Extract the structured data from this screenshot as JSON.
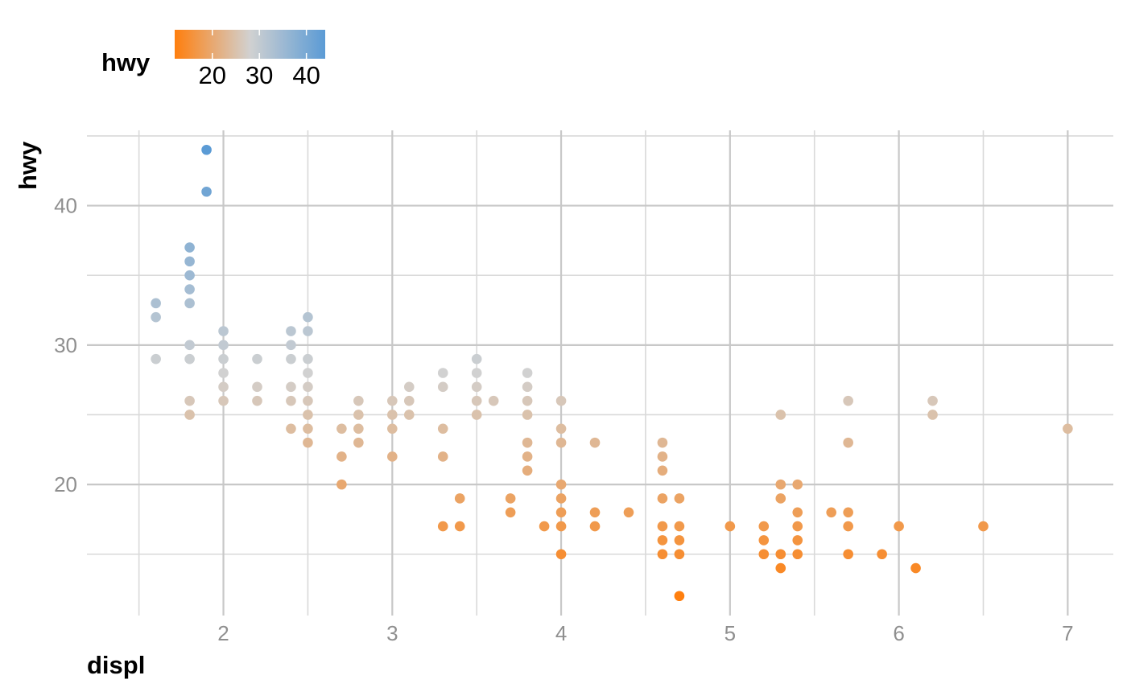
{
  "chart_data": {
    "type": "scatter",
    "title": "",
    "xlabel": "displ",
    "ylabel": "hwy",
    "xlim": [
      1.33,
      7.27
    ],
    "ylim": [
      10.6,
      45.4
    ],
    "x_ticks": [
      2,
      3,
      4,
      5,
      6,
      7
    ],
    "x_minor_ticks": [
      1.5,
      2.5,
      3.5,
      4.5,
      5.5,
      6.5
    ],
    "y_ticks": [
      20,
      30,
      40
    ],
    "y_minor_ticks": [
      15,
      25,
      35,
      45
    ],
    "grid": true,
    "color_scale": {
      "variable": "hwy",
      "title": "hwy",
      "low": 12,
      "high": 44,
      "mid": 28,
      "low_color": "#ff7f0e",
      "mid_color": "#d1d1d1",
      "high_color": "#5b9bd5",
      "tick_values": [
        20,
        30,
        40
      ],
      "tick_labels": [
        "20",
        "30",
        "40"
      ]
    },
    "legend_position": "top-left",
    "points": [
      {
        "x": 1.6,
        "y": 33
      },
      {
        "x": 1.6,
        "y": 32
      },
      {
        "x": 1.6,
        "y": 29
      },
      {
        "x": 1.8,
        "y": 37
      },
      {
        "x": 1.8,
        "y": 36
      },
      {
        "x": 1.8,
        "y": 35
      },
      {
        "x": 1.8,
        "y": 34
      },
      {
        "x": 1.8,
        "y": 33
      },
      {
        "x": 1.8,
        "y": 30
      },
      {
        "x": 1.8,
        "y": 29
      },
      {
        "x": 1.8,
        "y": 26
      },
      {
        "x": 1.8,
        "y": 25
      },
      {
        "x": 1.9,
        "y": 44
      },
      {
        "x": 1.9,
        "y": 41
      },
      {
        "x": 2.0,
        "y": 31
      },
      {
        "x": 2.0,
        "y": 30
      },
      {
        "x": 2.0,
        "y": 29
      },
      {
        "x": 2.0,
        "y": 28
      },
      {
        "x": 2.0,
        "y": 27
      },
      {
        "x": 2.0,
        "y": 26
      },
      {
        "x": 2.2,
        "y": 29
      },
      {
        "x": 2.2,
        "y": 27
      },
      {
        "x": 2.2,
        "y": 26
      },
      {
        "x": 2.4,
        "y": 31
      },
      {
        "x": 2.4,
        "y": 30
      },
      {
        "x": 2.4,
        "y": 29
      },
      {
        "x": 2.4,
        "y": 27
      },
      {
        "x": 2.4,
        "y": 26
      },
      {
        "x": 2.4,
        "y": 24
      },
      {
        "x": 2.5,
        "y": 32
      },
      {
        "x": 2.5,
        "y": 31
      },
      {
        "x": 2.5,
        "y": 29
      },
      {
        "x": 2.5,
        "y": 28
      },
      {
        "x": 2.5,
        "y": 27
      },
      {
        "x": 2.5,
        "y": 26
      },
      {
        "x": 2.5,
        "y": 25
      },
      {
        "x": 2.5,
        "y": 24
      },
      {
        "x": 2.5,
        "y": 23
      },
      {
        "x": 2.7,
        "y": 24
      },
      {
        "x": 2.7,
        "y": 22
      },
      {
        "x": 2.7,
        "y": 20
      },
      {
        "x": 2.8,
        "y": 26
      },
      {
        "x": 2.8,
        "y": 25
      },
      {
        "x": 2.8,
        "y": 24
      },
      {
        "x": 2.8,
        "y": 23
      },
      {
        "x": 3.0,
        "y": 26
      },
      {
        "x": 3.0,
        "y": 25
      },
      {
        "x": 3.0,
        "y": 24
      },
      {
        "x": 3.0,
        "y": 22
      },
      {
        "x": 3.1,
        "y": 27
      },
      {
        "x": 3.1,
        "y": 26
      },
      {
        "x": 3.1,
        "y": 25
      },
      {
        "x": 3.3,
        "y": 28
      },
      {
        "x": 3.3,
        "y": 27
      },
      {
        "x": 3.3,
        "y": 24
      },
      {
        "x": 3.3,
        "y": 22
      },
      {
        "x": 3.3,
        "y": 17
      },
      {
        "x": 3.4,
        "y": 19
      },
      {
        "x": 3.4,
        "y": 17
      },
      {
        "x": 3.5,
        "y": 29
      },
      {
        "x": 3.5,
        "y": 28
      },
      {
        "x": 3.5,
        "y": 27
      },
      {
        "x": 3.5,
        "y": 26
      },
      {
        "x": 3.5,
        "y": 25
      },
      {
        "x": 3.6,
        "y": 26
      },
      {
        "x": 3.7,
        "y": 19
      },
      {
        "x": 3.7,
        "y": 18
      },
      {
        "x": 3.8,
        "y": 28
      },
      {
        "x": 3.8,
        "y": 27
      },
      {
        "x": 3.8,
        "y": 26
      },
      {
        "x": 3.8,
        "y": 25
      },
      {
        "x": 3.8,
        "y": 23
      },
      {
        "x": 3.8,
        "y": 22
      },
      {
        "x": 3.8,
        "y": 21
      },
      {
        "x": 3.9,
        "y": 17
      },
      {
        "x": 4.0,
        "y": 26
      },
      {
        "x": 4.0,
        "y": 24
      },
      {
        "x": 4.0,
        "y": 23
      },
      {
        "x": 4.0,
        "y": 20
      },
      {
        "x": 4.0,
        "y": 19
      },
      {
        "x": 4.0,
        "y": 18
      },
      {
        "x": 4.0,
        "y": 17
      },
      {
        "x": 4.0,
        "y": 15
      },
      {
        "x": 4.2,
        "y": 23
      },
      {
        "x": 4.2,
        "y": 18
      },
      {
        "x": 4.2,
        "y": 17
      },
      {
        "x": 4.4,
        "y": 18
      },
      {
        "x": 4.6,
        "y": 23
      },
      {
        "x": 4.6,
        "y": 22
      },
      {
        "x": 4.6,
        "y": 21
      },
      {
        "x": 4.6,
        "y": 19
      },
      {
        "x": 4.6,
        "y": 17
      },
      {
        "x": 4.6,
        "y": 16
      },
      {
        "x": 4.6,
        "y": 15
      },
      {
        "x": 4.7,
        "y": 19
      },
      {
        "x": 4.7,
        "y": 17
      },
      {
        "x": 4.7,
        "y": 16
      },
      {
        "x": 4.7,
        "y": 15
      },
      {
        "x": 4.7,
        "y": 12
      },
      {
        "x": 5.0,
        "y": 17
      },
      {
        "x": 5.2,
        "y": 17
      },
      {
        "x": 5.2,
        "y": 16
      },
      {
        "x": 5.2,
        "y": 15
      },
      {
        "x": 5.3,
        "y": 25
      },
      {
        "x": 5.3,
        "y": 20
      },
      {
        "x": 5.3,
        "y": 19
      },
      {
        "x": 5.3,
        "y": 15
      },
      {
        "x": 5.3,
        "y": 14
      },
      {
        "x": 5.4,
        "y": 20
      },
      {
        "x": 5.4,
        "y": 18
      },
      {
        "x": 5.4,
        "y": 17
      },
      {
        "x": 5.4,
        "y": 16
      },
      {
        "x": 5.4,
        "y": 15
      },
      {
        "x": 5.6,
        "y": 18
      },
      {
        "x": 5.7,
        "y": 26
      },
      {
        "x": 5.7,
        "y": 23
      },
      {
        "x": 5.7,
        "y": 18
      },
      {
        "x": 5.7,
        "y": 17
      },
      {
        "x": 5.7,
        "y": 15
      },
      {
        "x": 5.9,
        "y": 15
      },
      {
        "x": 6.0,
        "y": 17
      },
      {
        "x": 6.1,
        "y": 14
      },
      {
        "x": 6.2,
        "y": 26
      },
      {
        "x": 6.2,
        "y": 25
      },
      {
        "x": 6.5,
        "y": 17
      },
      {
        "x": 7.0,
        "y": 24
      }
    ]
  }
}
